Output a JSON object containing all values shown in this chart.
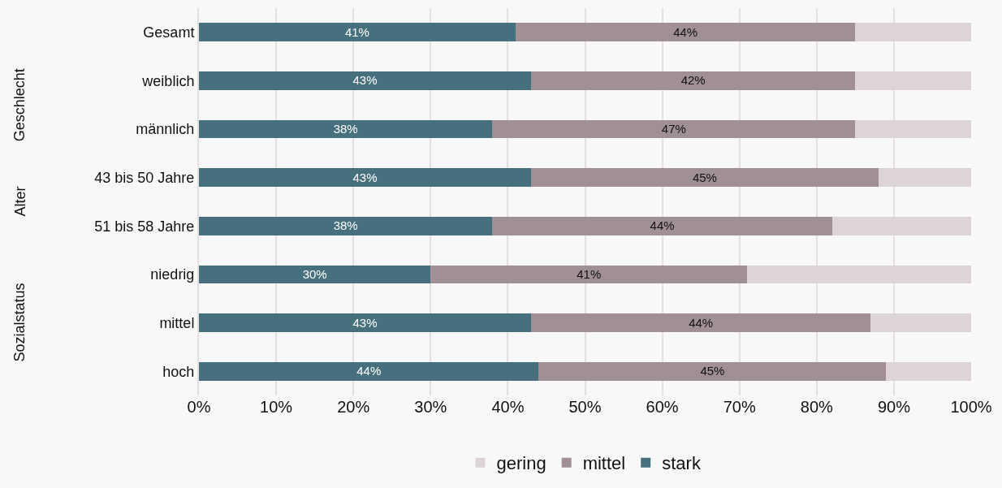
{
  "chart_data": {
    "type": "bar",
    "orientation": "horizontal",
    "stacked": true,
    "categories": [
      "Gesamt",
      "weiblich",
      "männlich",
      "43 bis 50 Jahre",
      "51 bis 58 Jahre",
      "niedrig",
      "mittel",
      "hoch"
    ],
    "series": [
      {
        "name": "stark",
        "color": "#46707e",
        "values": [
          41,
          43,
          38,
          43,
          38,
          30,
          43,
          44
        ],
        "value_labels": [
          "41%",
          "43%",
          "38%",
          "43%",
          "38%",
          "30%",
          "43%",
          "44%"
        ]
      },
      {
        "name": "mittel",
        "color": "#a09095",
        "values": [
          44,
          42,
          47,
          45,
          44,
          41,
          44,
          45
        ],
        "value_labels": [
          "44%",
          "42%",
          "47%",
          "45%",
          "44%",
          "41%",
          "44%",
          "45%"
        ]
      },
      {
        "name": "gering",
        "color": "#ddd4d8",
        "values": [
          15,
          15,
          15,
          12,
          18,
          29,
          13,
          11
        ]
      }
    ],
    "xlim": [
      0,
      100
    ],
    "xticks": [
      {
        "value": 0,
        "label": "0%"
      },
      {
        "value": 10,
        "label": "10%"
      },
      {
        "value": 20,
        "label": "20%"
      },
      {
        "value": 30,
        "label": "30%"
      },
      {
        "value": 40,
        "label": "40%"
      },
      {
        "value": 50,
        "label": "50%"
      },
      {
        "value": 60,
        "label": "60%"
      },
      {
        "value": 70,
        "label": "70%"
      },
      {
        "value": 80,
        "label": "80%"
      },
      {
        "value": 90,
        "label": "90%"
      },
      {
        "value": 100,
        "label": "100%"
      }
    ],
    "annotations": [
      "Geschlecht",
      "Alter",
      "Sozialstatus"
    ],
    "grid": "x",
    "legend": "bottom"
  }
}
